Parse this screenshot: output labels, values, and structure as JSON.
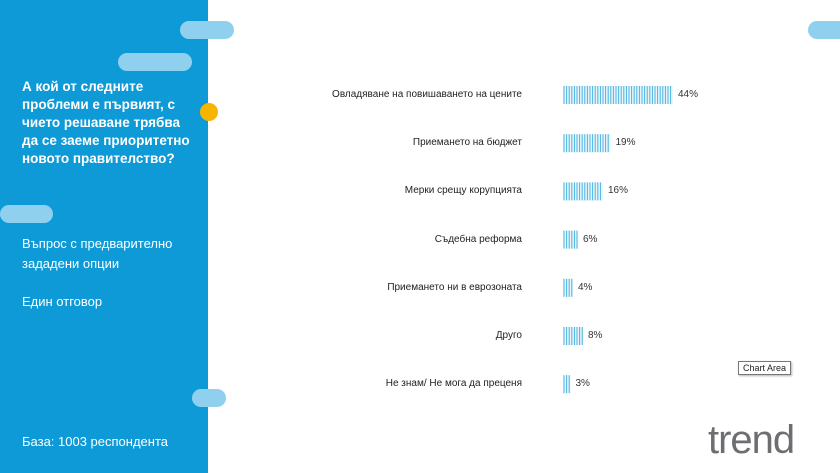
{
  "sidebar": {
    "question": "А кой от следните проблеми е първият, с чието решаване трябва да се заеме приоритетно новото правителство?",
    "note_type_line1": "Въпрос с предварително",
    "note_type_line2": "зададени опции",
    "note_answer": "Един отговор",
    "base": "База: 1003 респондента"
  },
  "colors": {
    "sidebar_bg": "#0e9ad7",
    "pill": "#8fd0ef",
    "accent_dot": "#f7b500",
    "bar_stroke": "#4bb3e0"
  },
  "chart_data": {
    "type": "bar",
    "orientation": "horizontal",
    "categories": [
      "Овладяване на повишаването на цените",
      "Приемането на бюджет",
      "Мерки срещу корупцията",
      "Съдебна реформа",
      "Приемането ни в еврозоната",
      "Друго",
      "Не знам/ Не мога да преценя"
    ],
    "values": [
      44,
      19,
      16,
      6,
      4,
      8,
      3
    ],
    "value_labels": [
      "44%",
      "19%",
      "16%",
      "6%",
      "4%",
      "8%",
      "3%"
    ],
    "unit": "%",
    "xlim": [
      0,
      50
    ],
    "grid": false,
    "legend": "none"
  },
  "tooltip": "Chart Area",
  "logo": "trend"
}
